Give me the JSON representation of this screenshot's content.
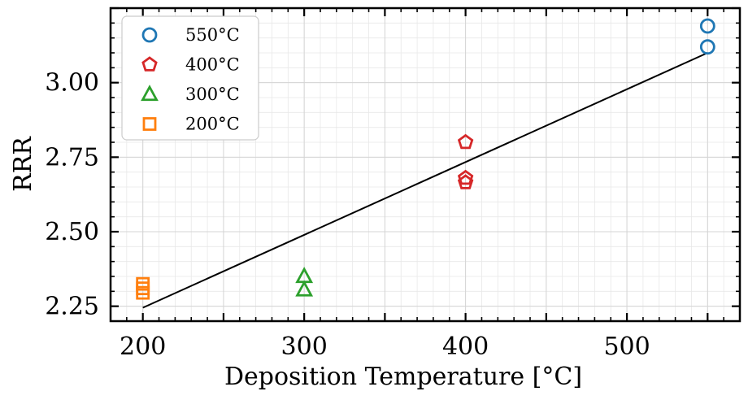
{
  "chart_data": {
    "type": "scatter",
    "xlabel": "Deposition Temperature [°C]",
    "ylabel": "RRR",
    "xlim": [
      180,
      570
    ],
    "ylim": [
      2.2,
      3.25
    ],
    "xticks": [
      200,
      300,
      400,
      500
    ],
    "xtick_labels": [
      "200",
      "300",
      "400",
      "500"
    ],
    "yticks": [
      2.25,
      2.5,
      2.75,
      3.0
    ],
    "ytick_labels": [
      "2.25",
      "2.50",
      "2.75",
      "3.00"
    ],
    "grid": true,
    "legend_position": "top-left",
    "series": [
      {
        "name": "550°C",
        "marker": "circle",
        "color": "#1f77b4",
        "x": [
          550,
          550
        ],
        "y": [
          3.19,
          3.12
        ]
      },
      {
        "name": "400°C",
        "marker": "pentagon",
        "color": "#d62728",
        "x": [
          400,
          400,
          400
        ],
        "y": [
          2.8,
          2.68,
          2.665
        ]
      },
      {
        "name": "300°C",
        "marker": "triangle",
        "color": "#2ca02c",
        "x": [
          300,
          300
        ],
        "y": [
          2.35,
          2.305
        ]
      },
      {
        "name": "200°C",
        "marker": "square",
        "color": "#ff7f0e",
        "x": [
          200,
          200,
          200
        ],
        "y": [
          2.325,
          2.31,
          2.295
        ]
      }
    ],
    "fit_line": {
      "x": [
        200,
        550
      ],
      "y": [
        2.245,
        3.1
      ],
      "color": "#000000"
    }
  }
}
